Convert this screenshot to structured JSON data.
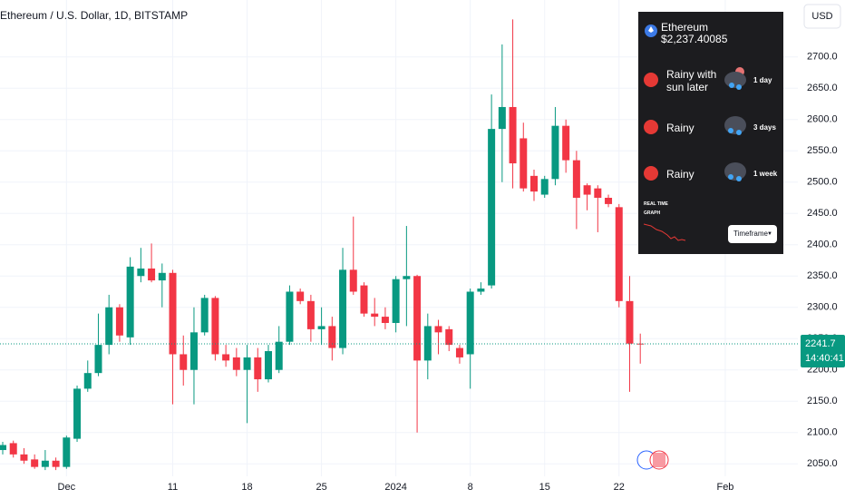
{
  "chart_data": {
    "type": "candlestick",
    "title": "Ethereum / U.S. Dollar, 1D, BITSTAMP",
    "currency": "USD",
    "countdown": "14:40:41",
    "up_color": "#089981",
    "down_color": "#f23645",
    "grid": true,
    "categories": [
      null,
      null,
      null,
      null,
      null,
      null,
      "Dec",
      null,
      null,
      null,
      null,
      null,
      null,
      null,
      null,
      null,
      "11",
      null,
      null,
      null,
      null,
      null,
      null,
      "18",
      null,
      null,
      null,
      null,
      null,
      null,
      "25",
      null,
      null,
      null,
      null,
      null,
      null,
      "2024",
      null,
      null,
      null,
      null,
      null,
      null,
      "8",
      null,
      null,
      null,
      null,
      null,
      null,
      "15",
      null,
      null,
      null,
      null,
      null,
      null,
      "22",
      null,
      null,
      null,
      null,
      null,
      null,
      null,
      null,
      null,
      "Feb",
      null,
      null
    ],
    "open": [
      2072,
      2083,
      2065,
      2057,
      2045,
      2055,
      2045,
      2090,
      2170,
      2195,
      2240,
      2300,
      2252,
      2350,
      2362,
      2343,
      2355,
      2225,
      2200,
      2260,
      2315,
      2225,
      2220,
      2200,
      2220,
      2185,
      2200,
      2245,
      2325,
      2310,
      2265,
      2270,
      2235,
      2360,
      2335,
      2290,
      2285,
      2275,
      2345,
      2350,
      2215,
      2270,
      2265,
      2235,
      2225,
      2325,
      2335,
      2585,
      2620,
      2570,
      2510,
      2480,
      2505,
      2590,
      2535,
      2495,
      2490,
      2475,
      2460,
      2310,
      2242,
      null,
      null,
      null,
      null,
      null,
      null,
      null,
      null,
      null,
      null
    ],
    "high": [
      2085,
      2087,
      2075,
      2065,
      2072,
      2060,
      2095,
      2175,
      2215,
      2290,
      2320,
      2305,
      2380,
      2395,
      2402,
      2370,
      2360,
      2255,
      2300,
      2320,
      2318,
      2240,
      2235,
      2240,
      2235,
      2240,
      2270,
      2335,
      2330,
      2320,
      2300,
      2285,
      2395,
      2445,
      2340,
      2315,
      2300,
      2350,
      2430,
      2352,
      2290,
      2280,
      2270,
      2240,
      2330,
      2340,
      2640,
      2720,
      2760,
      2595,
      2520,
      2510,
      2620,
      2600,
      2550,
      2498,
      2495,
      2480,
      2465,
      2350,
      2258,
      null,
      null,
      null,
      null,
      null,
      null,
      null,
      null,
      null,
      null
    ],
    "low": [
      2065,
      2060,
      2050,
      2042,
      2040,
      2040,
      2042,
      2085,
      2165,
      2190,
      2225,
      2245,
      2240,
      2340,
      2340,
      2300,
      2145,
      2175,
      2145,
      2255,
      2215,
      2205,
      2190,
      2115,
      2165,
      2180,
      2195,
      2240,
      2305,
      2245,
      2240,
      2215,
      2225,
      2320,
      2285,
      2270,
      2265,
      2260,
      2270,
      2100,
      2185,
      2225,
      2230,
      2210,
      2170,
      2320,
      2330,
      2500,
      2490,
      2485,
      2470,
      2475,
      2495,
      2515,
      2425,
      2455,
      2420,
      2460,
      2300,
      2165,
      2210,
      null,
      null,
      null,
      null,
      null,
      null,
      null,
      null,
      null,
      null
    ],
    "close": [
      2080,
      2065,
      2055,
      2045,
      2055,
      2045,
      2092,
      2170,
      2195,
      2240,
      2300,
      2255,
      2365,
      2362,
      2343,
      2355,
      2225,
      2200,
      2260,
      2315,
      2225,
      2215,
      2200,
      2220,
      2185,
      2230,
      2245,
      2325,
      2310,
      2265,
      2270,
      2235,
      2360,
      2325,
      2290,
      2285,
      2275,
      2345,
      2350,
      2215,
      2270,
      2260,
      2240,
      2220,
      2325,
      2330,
      2585,
      2620,
      2530,
      2490,
      2485,
      2505,
      2590,
      2535,
      2475,
      2480,
      2475,
      2465,
      2310,
      2242,
      2241.7,
      null,
      null,
      null,
      null,
      null,
      null,
      null,
      null,
      null,
      null
    ],
    "ylim": [
      2030,
      2791
    ],
    "yticks": [
      {
        "value": 2050,
        "label": "2050.0"
      },
      {
        "value": 2100,
        "label": "2100.0"
      },
      {
        "value": 2150,
        "label": "2150.0"
      },
      {
        "value": 2200,
        "label": "2200.0"
      },
      {
        "value": 2250,
        "label": "2250.0"
      },
      {
        "value": 2300,
        "label": "2300.0"
      },
      {
        "value": 2350,
        "label": "2350.0"
      },
      {
        "value": 2400,
        "label": "2400.0"
      },
      {
        "value": 2450,
        "label": "2450.0"
      },
      {
        "value": 2500,
        "label": "2500.0"
      },
      {
        "value": 2550,
        "label": "2550.0"
      },
      {
        "value": 2600,
        "label": "2600.0"
      },
      {
        "value": 2650,
        "label": "2650.0"
      },
      {
        "value": 2700,
        "label": "2700.0"
      }
    ]
  },
  "widget": {
    "name": "Ethereum",
    "price": "$2,237.40085",
    "forecasts": [
      {
        "label": "Rainy with sun later",
        "period": "1 day"
      },
      {
        "label": "Rainy",
        "period": "3 days"
      },
      {
        "label": "Rainy",
        "period": "1 week"
      }
    ],
    "graph_label": [
      "REAL TIME",
      "GRAPH"
    ],
    "timeframe": "Timeframe"
  }
}
